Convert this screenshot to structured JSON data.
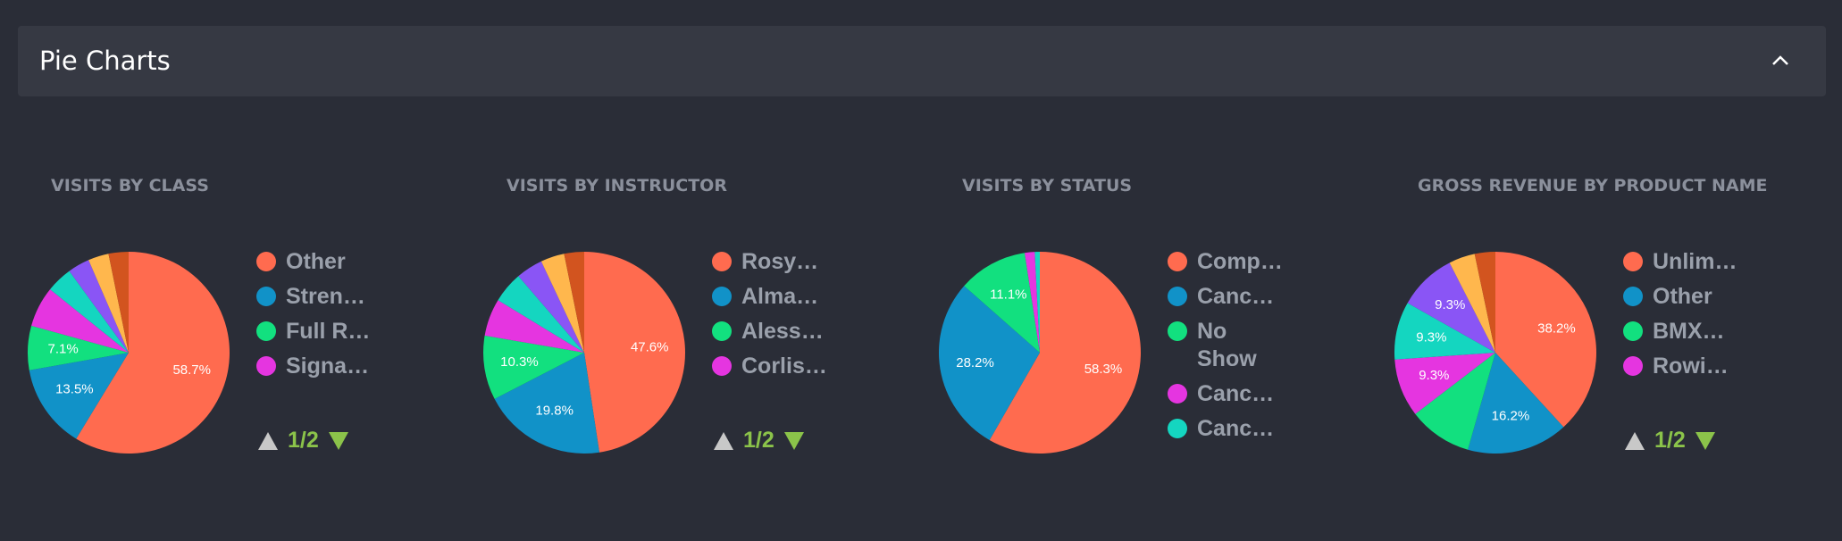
{
  "header": {
    "title": "Pie Charts"
  },
  "chart_data": [
    {
      "type": "pie",
      "title": "VISITS BY CLASS",
      "categories": [
        "Other",
        "Stren…",
        "Full R…",
        "Signa…",
        null,
        null,
        null,
        null
      ],
      "values": [
        58.7,
        13.5,
        7.1,
        6.5,
        4.2,
        3.5,
        3.3,
        3.2
      ],
      "value_labels": [
        "58.7%",
        "13.5%",
        "7.1%",
        null,
        null,
        null,
        null,
        null
      ],
      "colors": [
        "#ff6b4f",
        "#1192c8",
        "#12e07f",
        "#e535e0",
        "#14d6c0",
        "#8a55f5",
        "#ffb74d",
        "#d2541f"
      ],
      "legend_page": "1/2"
    },
    {
      "type": "pie",
      "title": "VISITS BY INSTRUCTOR",
      "categories": [
        "Rosy…",
        "Alma…",
        "Aless…",
        "Corlis…",
        null,
        null,
        null,
        null
      ],
      "values": [
        47.6,
        19.8,
        10.3,
        6,
        5,
        4.3,
        3.8,
        3.2
      ],
      "value_labels": [
        "47.6%",
        "19.8%",
        "10.3%",
        null,
        null,
        null,
        null,
        null
      ],
      "colors": [
        "#ff6b4f",
        "#1192c8",
        "#12e07f",
        "#e535e0",
        "#14d6c0",
        "#8a55f5",
        "#ffb74d",
        "#d2541f"
      ],
      "legend_page": "1/2"
    },
    {
      "type": "pie",
      "title": "VISITS BY STATUS",
      "categories": [
        "Comp…",
        "Canc…",
        "No Show",
        "Canc…",
        "Canc…"
      ],
      "values": [
        58.3,
        28.2,
        11.1,
        1.6,
        0.8
      ],
      "value_labels": [
        "58.3%",
        "28.2%",
        "11.1%",
        null,
        null
      ],
      "colors": [
        "#ff6b4f",
        "#1192c8",
        "#12e07f",
        "#e535e0",
        "#14d6c0"
      ]
    },
    {
      "type": "pie",
      "title": "GROSS REVENUE BY PRODUCT NAME",
      "categories": [
        "Unlim…",
        "Other",
        "BMX…",
        "Rowi…",
        null,
        null,
        null,
        null
      ],
      "values": [
        38.2,
        16.2,
        10.2,
        9.3,
        9.3,
        9.3,
        4.2,
        3.3
      ],
      "value_labels": [
        "38.2%",
        "16.2%",
        null,
        "9.3%",
        "9.3%",
        "9.3%",
        null,
        null
      ],
      "colors": [
        "#ff6b4f",
        "#1192c8",
        "#12e07f",
        "#e535e0",
        "#14d6c0",
        "#8a55f5",
        "#ffb74d",
        "#d2541f"
      ],
      "legend_page": "1/2"
    }
  ]
}
